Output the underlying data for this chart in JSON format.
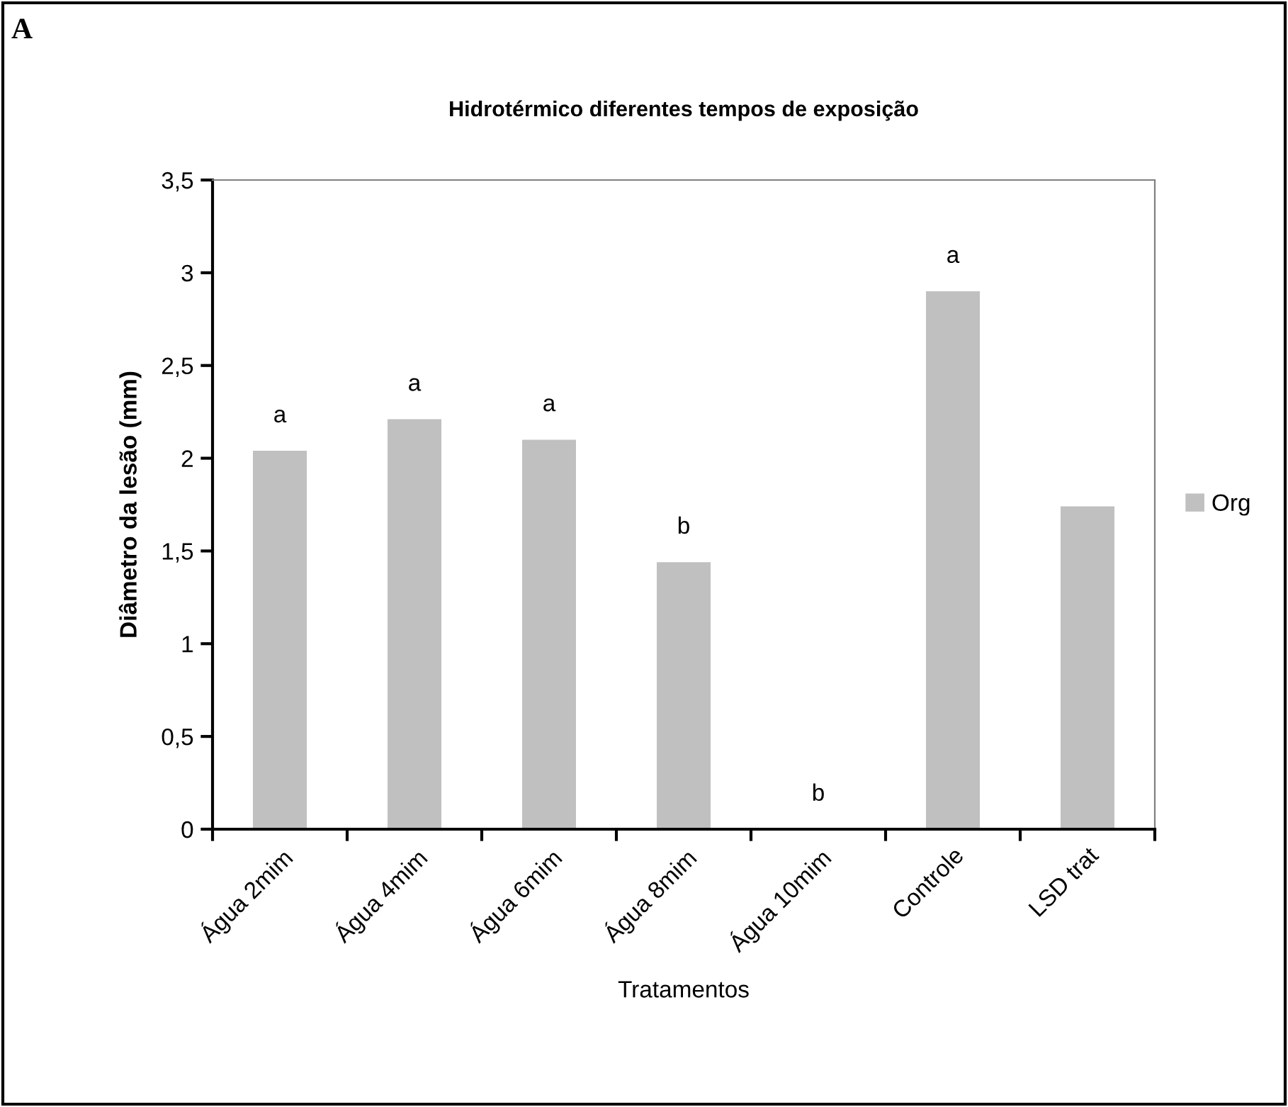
{
  "chart_data": {
    "type": "bar",
    "title": "Hidrotérmico diferentes tempos de exposição",
    "xlabel": "Tratamentos",
    "ylabel": "Diâmetro da lesão (mm)",
    "categories": [
      "Água 2mim",
      "Água 4mim",
      "Água 6mim",
      "Água 8mim",
      "Água 10mim",
      "Controle",
      "LSD trat"
    ],
    "series": [
      {
        "name": "Org",
        "color": "#c0c0c0",
        "values": [
          2.04,
          2.21,
          2.1,
          1.44,
          0,
          2.9,
          1.74
        ]
      }
    ],
    "ylim": [
      0,
      3.5
    ],
    "yticks": [
      0,
      {
        "value": 0.5,
        "label": "0,5"
      },
      1,
      {
        "value": 1.5,
        "label": "1,5"
      },
      2,
      {
        "value": 2.5,
        "label": "2,5"
      },
      3,
      {
        "value": 3.5,
        "label": "3,5"
      }
    ],
    "annotations": [
      "A",
      {
        "text": "a",
        "x": "Água 2mim",
        "y": 2.04
      },
      {
        "text": "a",
        "x": "Água 4mim",
        "y": 2.21
      },
      {
        "text": "a",
        "x": "Água 6mim",
        "y": 2.1
      },
      {
        "text": "b",
        "x": "Água 8mim",
        "y": 1.44
      },
      {
        "text": "b",
        "x": "Água 10mim",
        "y": 0
      },
      {
        "text": "a",
        "x": "Controle",
        "y": 2.9
      }
    ],
    "legend": "right",
    "grid": false
  }
}
